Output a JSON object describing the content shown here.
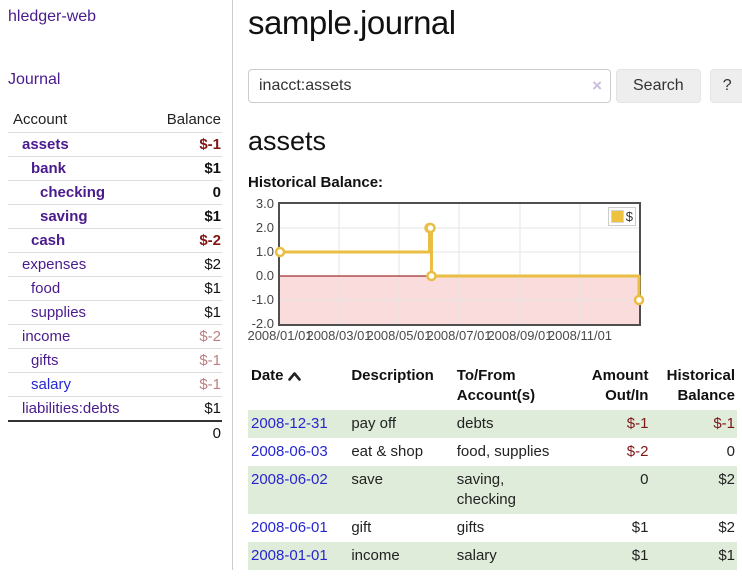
{
  "brand": "hledger-web",
  "sidebar": {
    "journal_link": "Journal",
    "accounts": {
      "header": {
        "account": "Account",
        "balance": "Balance"
      },
      "rows": [
        {
          "name": "assets",
          "balance": "$-1",
          "depth": 1,
          "emph": true,
          "balance_style": "neg-strong"
        },
        {
          "name": "bank",
          "balance": "$1",
          "depth": 2,
          "emph": true,
          "balance_style": "pos-strong"
        },
        {
          "name": "checking",
          "balance": "0",
          "depth": 3,
          "emph": true,
          "balance_style": "pos-strong"
        },
        {
          "name": "saving",
          "balance": "$1",
          "depth": 3,
          "emph": true,
          "balance_style": "pos-strong"
        },
        {
          "name": "cash",
          "balance": "$-2",
          "depth": 2,
          "emph": true,
          "balance_style": "neg-strong"
        },
        {
          "name": "expenses",
          "balance": "$2",
          "depth": 1,
          "emph": false,
          "balance_style": "pos"
        },
        {
          "name": "food",
          "balance": "$1",
          "depth": 2,
          "emph": false,
          "balance_style": "pos"
        },
        {
          "name": "supplies",
          "balance": "$1",
          "depth": 2,
          "emph": false,
          "balance_style": "pos"
        },
        {
          "name": "income",
          "balance": "$-2",
          "depth": 1,
          "emph": false,
          "balance_style": "neg"
        },
        {
          "name": "gifts",
          "balance": "$-1",
          "depth": 2,
          "emph": false,
          "balance_style": "neg"
        },
        {
          "name": "salary",
          "balance": "$-1",
          "depth": 2,
          "emph": false,
          "balance_style": "neg",
          "link_style": "unvisited"
        },
        {
          "name": "liabilities:debts",
          "balance": "$1",
          "depth": 1,
          "emph": false,
          "balance_style": "pos"
        }
      ],
      "total": "0"
    }
  },
  "main": {
    "title": "sample.journal",
    "search": {
      "value": "inacct:assets",
      "clear_symbol": "×",
      "button_label": "Search",
      "help_label": "?"
    },
    "account_heading": "assets",
    "section_label": "Historical Balance:"
  },
  "chart_data": {
    "type": "line",
    "title": "Historical Balance",
    "step": true,
    "x_range": [
      "2008-01-01",
      "2008-12-31"
    ],
    "ylim": [
      -2,
      3
    ],
    "yticks": [
      "3.0",
      "2.0",
      "1.0",
      "0.0",
      "-1.0",
      "-2.0"
    ],
    "xticks": [
      "2008/01/01",
      "2008/03/01",
      "2008/05/01",
      "2008/07/01",
      "2008/09/01",
      "2008/11/01"
    ],
    "series": [
      {
        "name": "$",
        "color": "#e9be42",
        "points": [
          [
            "2008-01-01",
            1
          ],
          [
            "2008-06-01",
            2
          ],
          [
            "2008-06-02",
            2
          ],
          [
            "2008-06-03",
            0
          ],
          [
            "2008-12-31",
            -1
          ]
        ]
      }
    ],
    "legend": {
      "position": "top-right",
      "entries": [
        "$"
      ]
    },
    "grid": true,
    "zero_line_color": "#8b0000",
    "negative_region_color": "#fbdcdc",
    "gridline_color": "#e6e6e6"
  },
  "register": {
    "headers": {
      "date": "Date",
      "description": "Description",
      "to_from": "To/From\nAccount(s)",
      "amount": "Amount\nOut/In",
      "balance": "Historical\nBalance"
    },
    "sort": {
      "column": "date",
      "direction": "ascending"
    },
    "rows": [
      {
        "date": "2008-12-31",
        "description": "pay off",
        "to_from": "debts",
        "amount": "$-1",
        "balance": "$-1",
        "amount_neg": true,
        "balance_neg": true
      },
      {
        "date": "2008-06-03",
        "description": "eat & shop",
        "to_from": "food, supplies",
        "amount": "$-2",
        "balance": "0",
        "amount_neg": true,
        "balance_neg": false
      },
      {
        "date": "2008-06-02",
        "description": "save",
        "to_from": "saving,\nchecking",
        "amount": "0",
        "balance": "$2",
        "amount_neg": false,
        "balance_neg": false
      },
      {
        "date": "2008-06-01",
        "description": "gift",
        "to_from": "gifts",
        "amount": "$1",
        "balance": "$2",
        "amount_neg": false,
        "balance_neg": false
      },
      {
        "date": "2008-01-01",
        "description": "income",
        "to_from": "salary",
        "amount": "$1",
        "balance": "$1",
        "amount_neg": false,
        "balance_neg": false
      }
    ]
  }
}
